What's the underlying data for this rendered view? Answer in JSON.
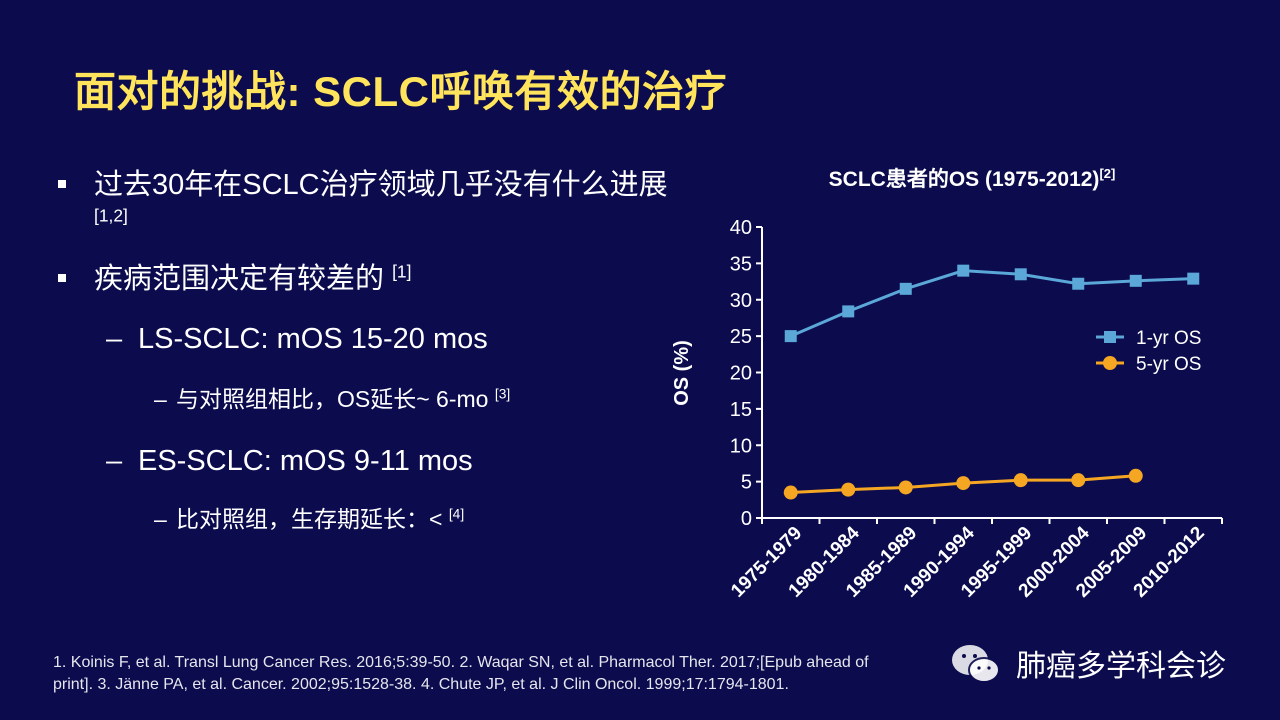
{
  "slide": {
    "title": "面对的挑战: SCLC呼唤有效的治疗",
    "bullets": [
      {
        "text": "过去30年在SCLC治疗领域几乎没有什么进展 ",
        "ref": "[1,2]"
      },
      {
        "text": "疾病范围决定有较差的 ",
        "ref": "[1]"
      }
    ],
    "sub_bullets": [
      {
        "dash": "–",
        "text": "LS-SCLC: mOS 15-20 mos"
      },
      {
        "dash": "–",
        "text": "与对照组相比，OS延长~ 6-mo ",
        "ref": "[3]"
      },
      {
        "dash": "–",
        "text": "ES-SCLC: mOS 9-11 mos"
      },
      {
        "dash": "–",
        "text": "比对照组，生存期延长：< ",
        "ref": "[4]"
      }
    ],
    "footnote_line1": "1. Koinis F, et al. Transl Lung Cancer Res. 2016;5:39-50. 2. Waqar SN, et al. Pharmacol Ther. 2017;[Epub ahead of",
    "footnote_line2": "print]. 3. Jänne PA, et al. Cancer. 2002;95:1528-38. 4. Chute JP, et al. J Clin Oncol. 1999;17:1794-1801.",
    "watermark": "肺癌多学科会诊"
  },
  "colors": {
    "background": "#0b0b4d",
    "title": "#ffe45c",
    "series1": "#5aa7d8",
    "series2": "#f5a623"
  },
  "chart_data": {
    "type": "line",
    "title": "SCLC患者的OS (1975-2012)",
    "title_ref": "[2]",
    "xlabel": "",
    "ylabel": "OS (%)",
    "ylim": [
      0,
      40
    ],
    "yticks": [
      "0",
      "5",
      "10",
      "15",
      "20",
      "25",
      "30",
      "35",
      "40"
    ],
    "categories": [
      "1975-1979",
      "1980-1984",
      "1985-1989",
      "1990-1994",
      "1995-1999",
      "2000-2004",
      "2005-2009",
      "2010-2012"
    ],
    "series": [
      {
        "name": "1-yr OS",
        "marker": "square",
        "values": [
          25.0,
          28.4,
          31.5,
          34.0,
          33.5,
          32.2,
          32.6,
          32.9
        ]
      },
      {
        "name": "5-yr OS",
        "marker": "circle",
        "values": [
          3.5,
          3.9,
          4.2,
          4.8,
          5.2,
          5.2,
          5.8,
          null
        ]
      }
    ],
    "legend": "right",
    "grid": false
  }
}
